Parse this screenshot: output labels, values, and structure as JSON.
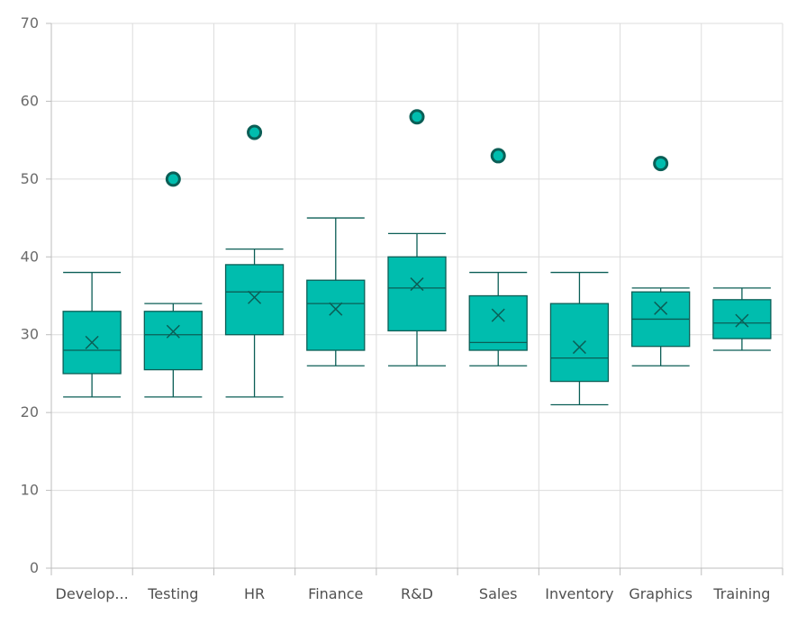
{
  "colors": {
    "box_fill": "#00bdae",
    "stroke": "#0b5e56",
    "grid": "#dcdcdc",
    "axis": "#bdbdbd"
  },
  "chart_data": {
    "type": "boxplot",
    "title": "",
    "xlabel": "",
    "ylabel": "",
    "ylim": [
      0,
      70
    ],
    "y_ticks": [
      0,
      10,
      20,
      30,
      40,
      50,
      60,
      70
    ],
    "grid": true,
    "legend": "none",
    "categories": [
      "Develop...",
      "Testing",
      "HR",
      "Finance",
      "R&D",
      "Sales",
      "Inventory",
      "Graphics",
      "Training"
    ],
    "boxes": [
      {
        "min": 22,
        "q1": 25,
        "median": 28,
        "q3": 33,
        "max": 38,
        "mean": 29,
        "outliers": []
      },
      {
        "min": 22,
        "q1": 25.5,
        "median": 30,
        "q3": 33,
        "max": 34,
        "mean": 30.4,
        "outliers": [
          50
        ]
      },
      {
        "min": 22,
        "q1": 30,
        "median": 35.5,
        "q3": 39,
        "max": 41,
        "mean": 34.8,
        "outliers": [
          56
        ]
      },
      {
        "min": 26,
        "q1": 28,
        "median": 34,
        "q3": 37,
        "max": 45,
        "mean": 33.3,
        "outliers": []
      },
      {
        "min": 26,
        "q1": 30.5,
        "median": 36,
        "q3": 40,
        "max": 43,
        "mean": 36.5,
        "outliers": [
          58
        ]
      },
      {
        "min": 26,
        "q1": 28,
        "median": 29,
        "q3": 35,
        "max": 38,
        "mean": 32.5,
        "outliers": [
          53
        ]
      },
      {
        "min": 21,
        "q1": 24,
        "median": 27,
        "q3": 34,
        "max": 38,
        "mean": 28.4,
        "outliers": []
      },
      {
        "min": 26,
        "q1": 28.5,
        "median": 32,
        "q3": 35.5,
        "max": 36,
        "mean": 33.4,
        "outliers": [
          52
        ]
      },
      {
        "min": 28,
        "q1": 29.5,
        "median": 31.5,
        "q3": 34.5,
        "max": 36,
        "mean": 31.8,
        "outliers": []
      }
    ]
  }
}
